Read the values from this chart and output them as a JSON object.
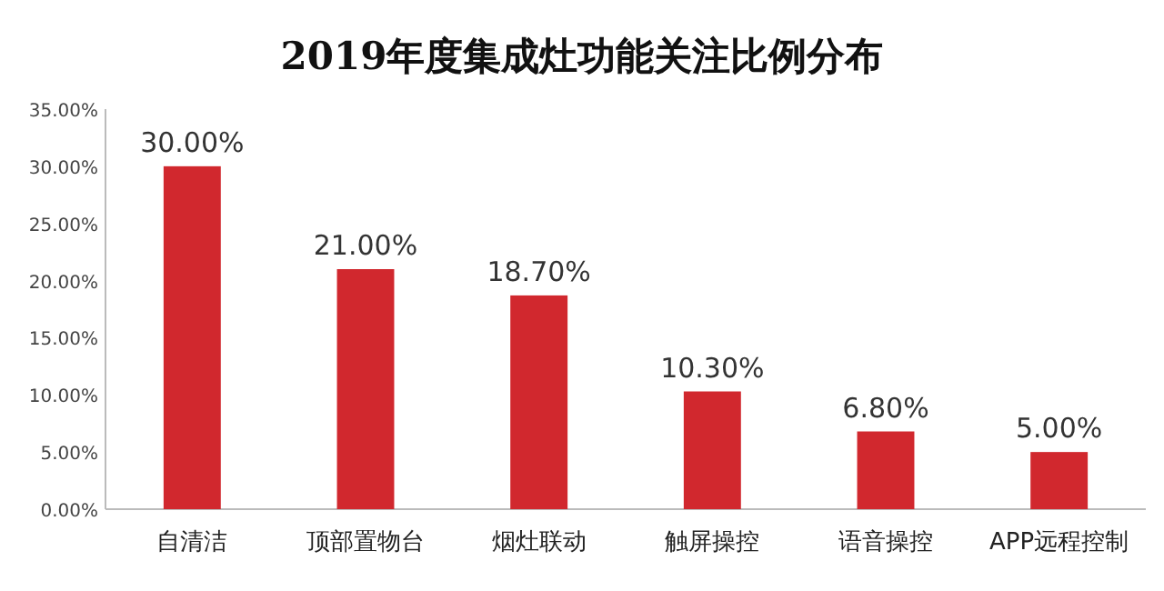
{
  "chart_data": {
    "type": "bar",
    "title": "2019年度集成灶功能关注比例分布",
    "categories": [
      "自清洁",
      "顶部置物台",
      "烟灶联动",
      "触屏操控",
      "语音操控",
      "APP远程控制"
    ],
    "values": [
      30,
      21,
      18.7,
      10.3,
      6.8,
      5.0
    ],
    "value_labels": [
      "30.00%",
      "21.00%",
      "18.70%",
      "10.30%",
      "6.80%",
      "5.00%"
    ],
    "color": "#d1282e",
    "ylim": [
      0,
      35
    ],
    "yticks": [
      {
        "value": 0,
        "label": "0.00%"
      },
      {
        "value": 5,
        "label": "5.00%"
      },
      {
        "value": 10,
        "label": "10.00%"
      },
      {
        "value": 15,
        "label": "15.00%"
      },
      {
        "value": 20,
        "label": "20.00%"
      },
      {
        "value": 25,
        "label": "25.00%"
      },
      {
        "value": 30,
        "label": "30.00%"
      },
      {
        "value": 35,
        "label": "35.00%"
      }
    ],
    "grid": false
  }
}
